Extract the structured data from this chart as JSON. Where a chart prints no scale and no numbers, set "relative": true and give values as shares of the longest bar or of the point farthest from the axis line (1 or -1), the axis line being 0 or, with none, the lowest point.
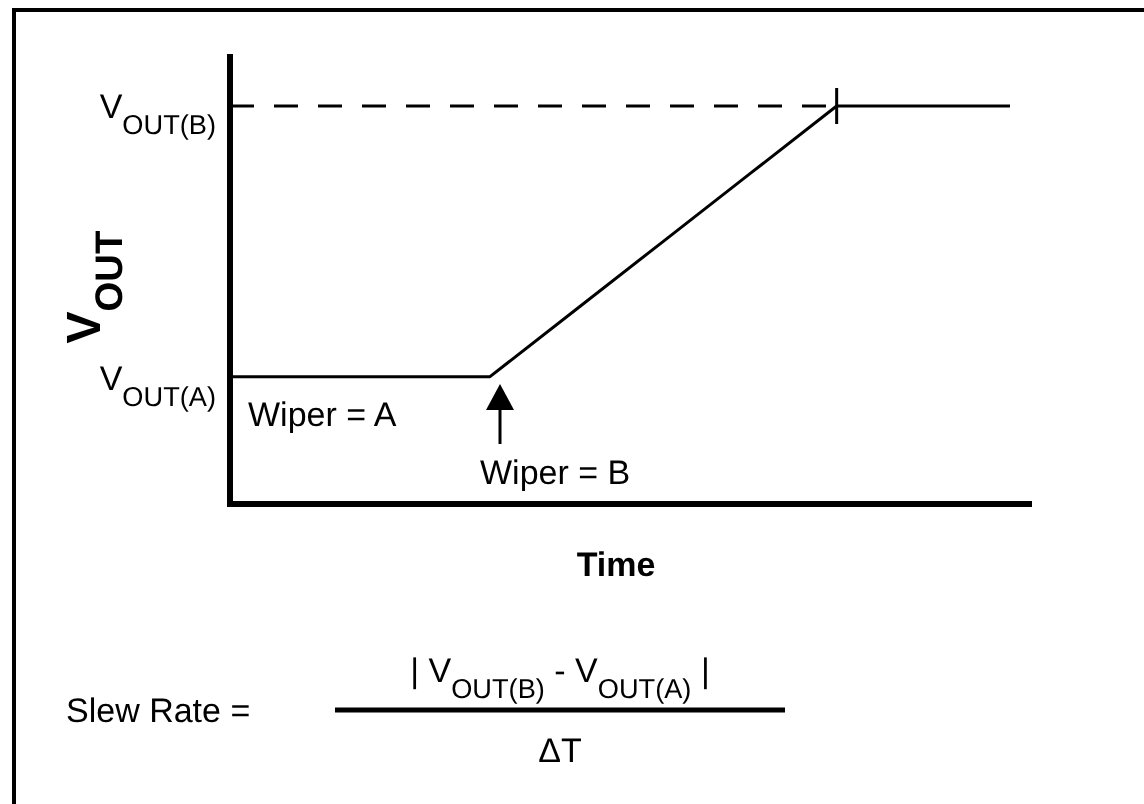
{
  "chart_data": {
    "type": "line",
    "relative": true,
    "ylabel": "V$_{OUT}$",
    "xlabel": "Time",
    "categories": [
      null,
      null,
      null,
      null,
      null,
      null,
      null,
      null,
      null,
      null
    ],
    "series": [
      {
        "color": "#000000",
        "values": [
          0.32,
          0.32,
          0.32,
          0.32,
          0.49,
          0.66,
          0.83,
          1,
          1,
          1
        ]
      }
    ],
    "ref_lines": [
      {
        "axis": "y",
        "value": 1,
        "label": "V$_{OUT(B)}$",
        "line_style": "dashed",
        "color": "#000000"
      }
    ],
    "annotations": [
      "V$_{OUT(A)}$",
      "Wiper = A",
      "Wiper = B",
      "Slew Rate =",
      "| V$_{OUT(B)}$ - V$_{OUT(A)}$ |",
      "ΔT"
    ],
    "grid": false,
    "marker": "none",
    "line_style": "solid"
  }
}
